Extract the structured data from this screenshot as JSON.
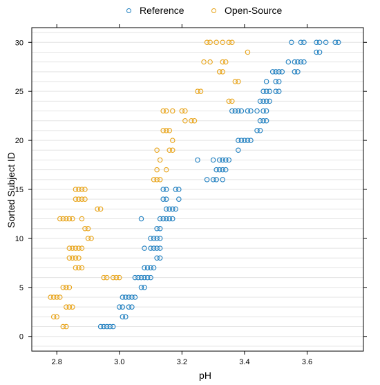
{
  "chart_data": {
    "type": "scatter",
    "xlabel": "pH",
    "ylabel": "Sorted Subject ID",
    "xlim": [
      2.72,
      3.78
    ],
    "ylim": [
      -1.5,
      31.5
    ],
    "x_ticks": [
      2.8,
      3.0,
      3.2,
      3.4,
      3.6
    ],
    "y_ticks": [
      0,
      5,
      10,
      15,
      20,
      25,
      30
    ],
    "grid": true,
    "legend_position": "top",
    "series": [
      {
        "name": "Reference",
        "color": "#1f7fc0",
        "points": [
          [
            2.94,
            1
          ],
          [
            2.95,
            1
          ],
          [
            2.96,
            1
          ],
          [
            2.97,
            1
          ],
          [
            2.98,
            1
          ],
          [
            3.01,
            2
          ],
          [
            3.02,
            2
          ],
          [
            3.0,
            3
          ],
          [
            3.01,
            3
          ],
          [
            3.03,
            3
          ],
          [
            3.04,
            3
          ],
          [
            3.01,
            4
          ],
          [
            3.02,
            4
          ],
          [
            3.03,
            4
          ],
          [
            3.04,
            4
          ],
          [
            3.05,
            4
          ],
          [
            3.07,
            5
          ],
          [
            3.08,
            5
          ],
          [
            3.05,
            6
          ],
          [
            3.06,
            6
          ],
          [
            3.07,
            6
          ],
          [
            3.08,
            6
          ],
          [
            3.09,
            6
          ],
          [
            3.1,
            6
          ],
          [
            3.08,
            7
          ],
          [
            3.09,
            7
          ],
          [
            3.1,
            7
          ],
          [
            3.11,
            7
          ],
          [
            3.12,
            8
          ],
          [
            3.13,
            8
          ],
          [
            3.08,
            9
          ],
          [
            3.1,
            9
          ],
          [
            3.11,
            9
          ],
          [
            3.12,
            9
          ],
          [
            3.13,
            9
          ],
          [
            3.1,
            10
          ],
          [
            3.11,
            10
          ],
          [
            3.12,
            10
          ],
          [
            3.13,
            10
          ],
          [
            3.12,
            11
          ],
          [
            3.13,
            11
          ],
          [
            3.07,
            12
          ],
          [
            3.13,
            12
          ],
          [
            3.14,
            12
          ],
          [
            3.15,
            12
          ],
          [
            3.16,
            12
          ],
          [
            3.17,
            12
          ],
          [
            3.15,
            13
          ],
          [
            3.16,
            13
          ],
          [
            3.17,
            13
          ],
          [
            3.18,
            13
          ],
          [
            3.14,
            14
          ],
          [
            3.15,
            14
          ],
          [
            3.19,
            14
          ],
          [
            3.14,
            15
          ],
          [
            3.15,
            15
          ],
          [
            3.18,
            15
          ],
          [
            3.19,
            15
          ],
          [
            3.28,
            16
          ],
          [
            3.3,
            16
          ],
          [
            3.31,
            16
          ],
          [
            3.33,
            16
          ],
          [
            3.31,
            17
          ],
          [
            3.32,
            17
          ],
          [
            3.33,
            17
          ],
          [
            3.34,
            17
          ],
          [
            3.25,
            18
          ],
          [
            3.3,
            18
          ],
          [
            3.32,
            18
          ],
          [
            3.33,
            18
          ],
          [
            3.34,
            18
          ],
          [
            3.35,
            18
          ],
          [
            3.38,
            19
          ],
          [
            3.38,
            20
          ],
          [
            3.39,
            20
          ],
          [
            3.4,
            20
          ],
          [
            3.41,
            20
          ],
          [
            3.42,
            20
          ],
          [
            3.44,
            21
          ],
          [
            3.45,
            21
          ],
          [
            3.45,
            22
          ],
          [
            3.46,
            22
          ],
          [
            3.47,
            22
          ],
          [
            3.36,
            23
          ],
          [
            3.37,
            23
          ],
          [
            3.38,
            23
          ],
          [
            3.39,
            23
          ],
          [
            3.41,
            23
          ],
          [
            3.42,
            23
          ],
          [
            3.44,
            23
          ],
          [
            3.46,
            23
          ],
          [
            3.47,
            23
          ],
          [
            3.45,
            24
          ],
          [
            3.46,
            24
          ],
          [
            3.47,
            24
          ],
          [
            3.48,
            24
          ],
          [
            3.46,
            25
          ],
          [
            3.47,
            25
          ],
          [
            3.48,
            25
          ],
          [
            3.5,
            25
          ],
          [
            3.51,
            25
          ],
          [
            3.47,
            26
          ],
          [
            3.5,
            26
          ],
          [
            3.51,
            26
          ],
          [
            3.49,
            27
          ],
          [
            3.5,
            27
          ],
          [
            3.51,
            27
          ],
          [
            3.52,
            27
          ],
          [
            3.56,
            27
          ],
          [
            3.57,
            27
          ],
          [
            3.54,
            28
          ],
          [
            3.56,
            28
          ],
          [
            3.57,
            28
          ],
          [
            3.58,
            28
          ],
          [
            3.59,
            28
          ],
          [
            3.63,
            29
          ],
          [
            3.64,
            29
          ],
          [
            3.55,
            30
          ],
          [
            3.58,
            30
          ],
          [
            3.59,
            30
          ],
          [
            3.63,
            30
          ],
          [
            3.64,
            30
          ],
          [
            3.66,
            30
          ],
          [
            3.69,
            30
          ],
          [
            3.7,
            30
          ]
        ]
      },
      {
        "name": "Open-Source",
        "color": "#e8a317",
        "points": [
          [
            2.82,
            1
          ],
          [
            2.83,
            1
          ],
          [
            2.79,
            2
          ],
          [
            2.8,
            2
          ],
          [
            2.83,
            3
          ],
          [
            2.84,
            3
          ],
          [
            2.85,
            3
          ],
          [
            2.78,
            4
          ],
          [
            2.79,
            4
          ],
          [
            2.8,
            4
          ],
          [
            2.81,
            4
          ],
          [
            2.82,
            5
          ],
          [
            2.83,
            5
          ],
          [
            2.84,
            5
          ],
          [
            2.95,
            6
          ],
          [
            2.96,
            6
          ],
          [
            2.98,
            6
          ],
          [
            2.99,
            6
          ],
          [
            3.0,
            6
          ],
          [
            2.86,
            7
          ],
          [
            2.87,
            7
          ],
          [
            2.88,
            7
          ],
          [
            2.84,
            8
          ],
          [
            2.85,
            8
          ],
          [
            2.86,
            8
          ],
          [
            2.87,
            8
          ],
          [
            2.84,
            9
          ],
          [
            2.85,
            9
          ],
          [
            2.86,
            9
          ],
          [
            2.87,
            9
          ],
          [
            2.88,
            9
          ],
          [
            2.9,
            10
          ],
          [
            2.91,
            10
          ],
          [
            2.89,
            11
          ],
          [
            2.9,
            11
          ],
          [
            2.81,
            12
          ],
          [
            2.82,
            12
          ],
          [
            2.83,
            12
          ],
          [
            2.84,
            12
          ],
          [
            2.85,
            12
          ],
          [
            2.88,
            12
          ],
          [
            2.93,
            13
          ],
          [
            2.94,
            13
          ],
          [
            2.86,
            14
          ],
          [
            2.87,
            14
          ],
          [
            2.88,
            14
          ],
          [
            2.89,
            14
          ],
          [
            2.86,
            15
          ],
          [
            2.87,
            15
          ],
          [
            2.88,
            15
          ],
          [
            2.89,
            15
          ],
          [
            3.11,
            16
          ],
          [
            3.12,
            16
          ],
          [
            3.13,
            16
          ],
          [
            3.12,
            17
          ],
          [
            3.15,
            17
          ],
          [
            3.13,
            18
          ],
          [
            3.12,
            19
          ],
          [
            3.16,
            19
          ],
          [
            3.17,
            19
          ],
          [
            3.17,
            20
          ],
          [
            3.14,
            21
          ],
          [
            3.15,
            21
          ],
          [
            3.16,
            21
          ],
          [
            3.21,
            22
          ],
          [
            3.23,
            22
          ],
          [
            3.24,
            22
          ],
          [
            3.14,
            23
          ],
          [
            3.15,
            23
          ],
          [
            3.17,
            23
          ],
          [
            3.2,
            23
          ],
          [
            3.21,
            23
          ],
          [
            3.35,
            24
          ],
          [
            3.36,
            24
          ],
          [
            3.25,
            25
          ],
          [
            3.26,
            25
          ],
          [
            3.37,
            26
          ],
          [
            3.38,
            26
          ],
          [
            3.32,
            27
          ],
          [
            3.33,
            27
          ],
          [
            3.27,
            28
          ],
          [
            3.29,
            28
          ],
          [
            3.33,
            28
          ],
          [
            3.34,
            28
          ],
          [
            3.41,
            29
          ],
          [
            3.28,
            30
          ],
          [
            3.29,
            30
          ],
          [
            3.31,
            30
          ],
          [
            3.33,
            30
          ],
          [
            3.35,
            30
          ],
          [
            3.36,
            30
          ]
        ]
      }
    ]
  }
}
